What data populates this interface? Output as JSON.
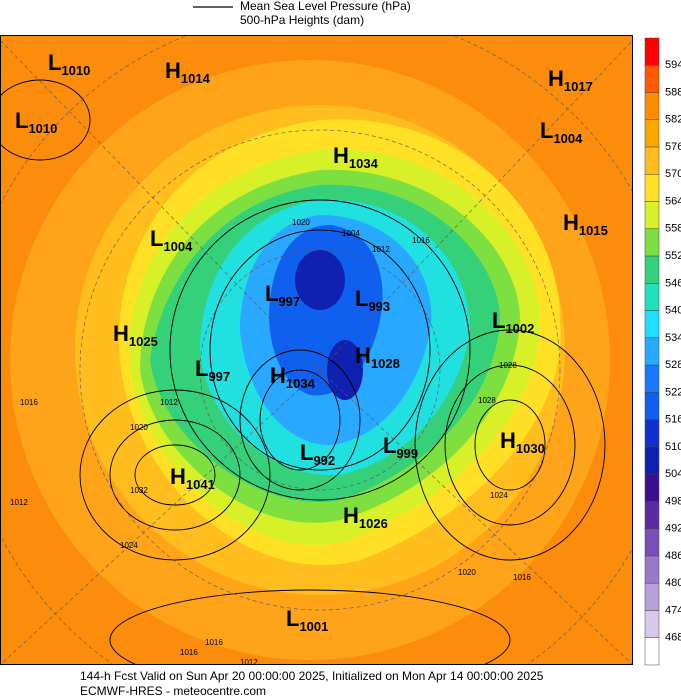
{
  "legend": [
    "Mean Sea Level Pressure (hPa)",
    "500-hPa Heights (dam)"
  ],
  "colorbar": [
    594,
    588,
    582,
    576,
    570,
    564,
    558,
    552,
    546,
    540,
    534,
    528,
    522,
    516,
    510,
    504,
    498,
    492,
    486,
    480,
    474,
    468
  ],
  "centers": [
    {
      "kind": "L",
      "value": 1010
    },
    {
      "kind": "H",
      "value": 1014
    },
    {
      "kind": "L",
      "value": 1010
    },
    {
      "kind": "H",
      "value": 1017
    },
    {
      "kind": "L",
      "value": 1004
    },
    {
      "kind": "H",
      "value": 1034
    },
    {
      "kind": "H",
      "value": 1015
    },
    {
      "kind": "L",
      "value": 1004
    },
    {
      "kind": "L",
      "value": 997
    },
    {
      "kind": "L",
      "value": 993
    },
    {
      "kind": "L",
      "value": 1002
    },
    {
      "kind": "H",
      "value": 1025
    },
    {
      "kind": "L",
      "value": 997
    },
    {
      "kind": "H",
      "value": 1034
    },
    {
      "kind": "H",
      "value": 1028
    },
    {
      "kind": "H",
      "value": 1030
    },
    {
      "kind": "L",
      "value": 992
    },
    {
      "kind": "L",
      "value": 999
    },
    {
      "kind": "H",
      "value": 1041
    },
    {
      "kind": "H",
      "value": 1026
    },
    {
      "kind": "L",
      "value": 1001
    }
  ],
  "isobar_labels": [
    1004,
    1012,
    1016,
    1020,
    1016,
    1012,
    1020,
    1012,
    1032,
    1028,
    1024,
    1016,
    1016,
    1012,
    1024,
    1028,
    1020,
    1016
  ],
  "footer": [
    "144-h Fcst Valid on Sun Apr 20 00:00:00 2025, Initialized on Mon Apr 14 00:00:00 2025",
    "ECMWF-HRES  - meteocentre.com"
  ]
}
